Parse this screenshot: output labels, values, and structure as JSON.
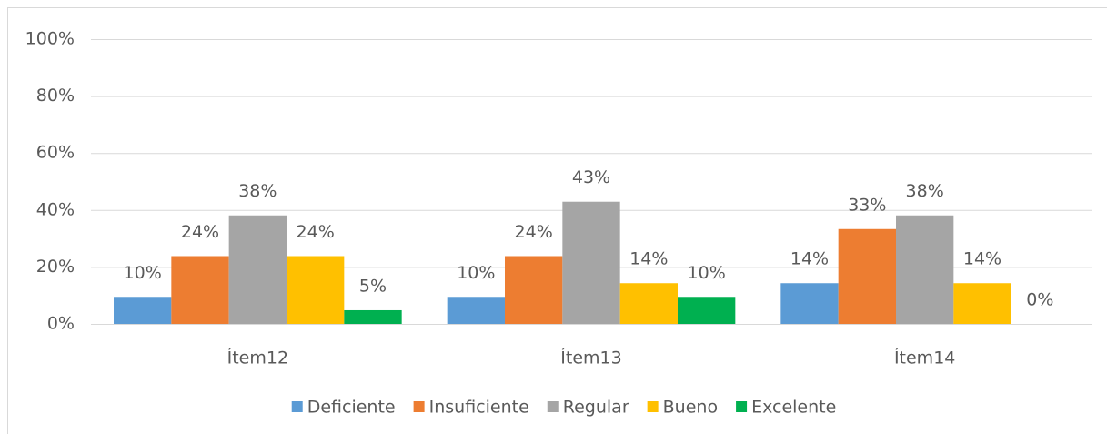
{
  "chart_data": {
    "type": "bar",
    "categories": [
      "Ítem12",
      "Ítem13",
      "Ítem14"
    ],
    "series": [
      {
        "name": "Deficiente",
        "color": "#5b9bd5",
        "values": [
          9.5,
          9.5,
          14.3
        ],
        "value_labels": [
          "10%",
          "10%",
          "14%"
        ]
      },
      {
        "name": "Insuficiente",
        "color": "#ed7d31",
        "values": [
          23.8,
          23.8,
          33.3
        ],
        "value_labels": [
          "24%",
          "24%",
          "33%"
        ]
      },
      {
        "name": "Regular",
        "color": "#a5a5a5",
        "values": [
          38.1,
          42.9,
          38.1
        ],
        "value_labels": [
          "38%",
          "43%",
          "38%"
        ]
      },
      {
        "name": "Bueno",
        "color": "#ffc000",
        "values": [
          23.8,
          14.3,
          14.3
        ],
        "value_labels": [
          "24%",
          "14%",
          "14%"
        ]
      },
      {
        "name": "Excelente",
        "color": "#00b050",
        "values": [
          4.8,
          9.5,
          0
        ],
        "value_labels": [
          "5%",
          "10%",
          "0%"
        ]
      }
    ],
    "ylim": [
      0,
      100
    ],
    "yticks": [
      {
        "value": 0,
        "label": "0%"
      },
      {
        "value": 20,
        "label": "20%"
      },
      {
        "value": 40,
        "label": "40%"
      },
      {
        "value": 60,
        "label": "60%"
      },
      {
        "value": 80,
        "label": "80%"
      },
      {
        "value": 100,
        "label": "100%"
      }
    ],
    "grid": true,
    "legend": "bottom"
  }
}
